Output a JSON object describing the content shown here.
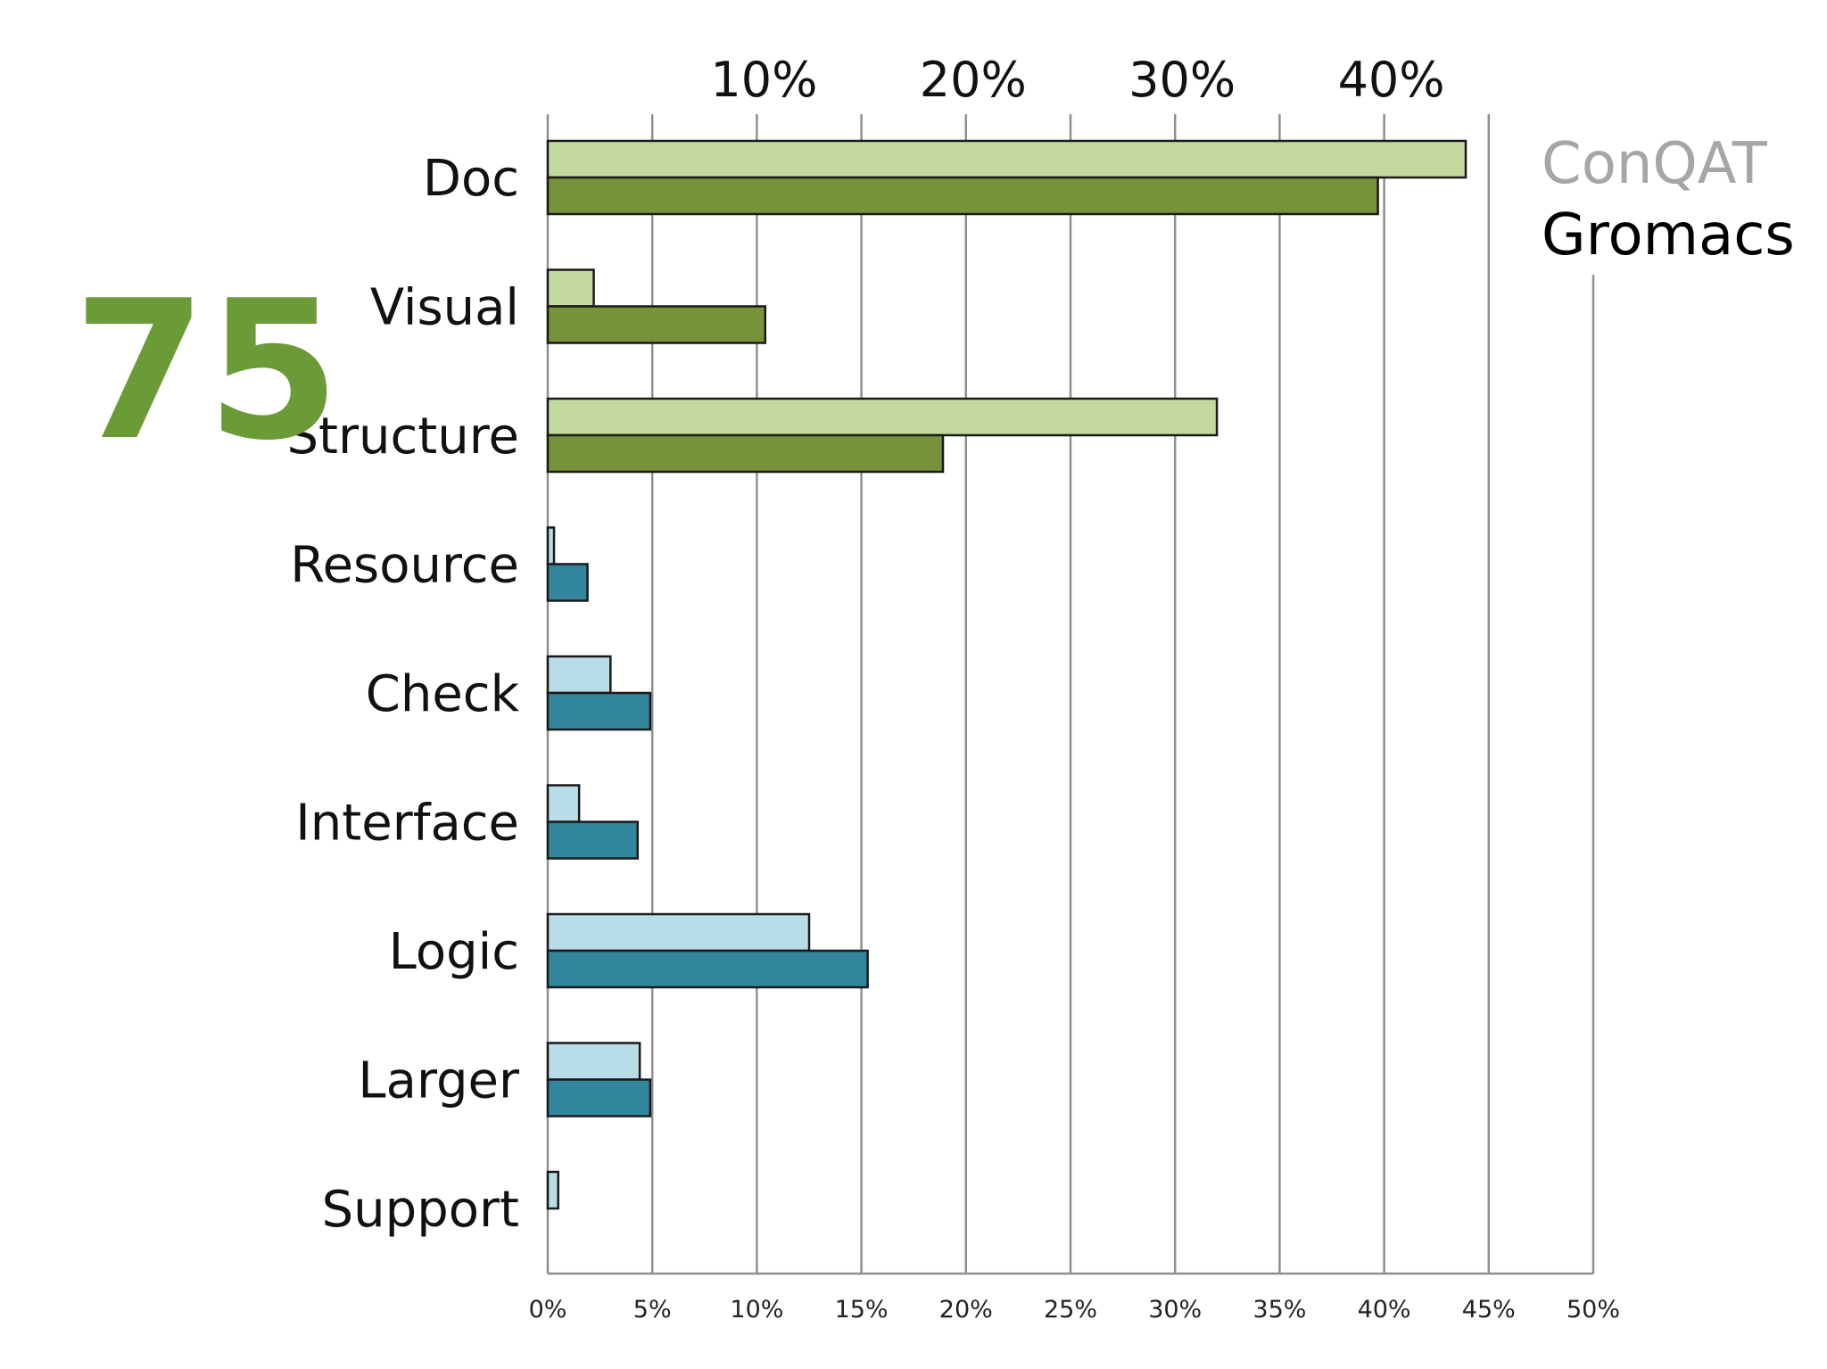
{
  "badge": {
    "value": "75",
    "color": "#6b9b37"
  },
  "chart_data": {
    "type": "bar",
    "orientation": "horizontal",
    "categories": [
      "Doc",
      "Visual",
      "Structure",
      "Resource",
      "Check",
      "Interface",
      "Logic",
      "Larger",
      "Support"
    ],
    "series": [
      {
        "name": "ConQAT",
        "values": [
          43.9,
          2.2,
          32.0,
          0.3,
          3.0,
          1.5,
          12.5,
          4.4,
          0.5
        ]
      },
      {
        "name": "Gromacs",
        "values": [
          39.7,
          10.4,
          18.9,
          1.9,
          4.9,
          4.3,
          15.3,
          4.9,
          0.0
        ]
      }
    ],
    "colors": {
      "green_light": "#c4d99e",
      "green_dark": "#76933c",
      "teal_light": "#b8dce8",
      "teal_dark": "#31859c",
      "conqat_legend": "#a6a6a6",
      "gromacs_legend": "#000000"
    },
    "green_group_size": 3,
    "xlim": [
      0,
      50
    ],
    "bottom_ticks": [
      "0%",
      "5%",
      "10%",
      "15%",
      "20%",
      "25%",
      "30%",
      "35%",
      "40%",
      "45%",
      "50%"
    ],
    "top_ticks": [
      "10%",
      "20%",
      "30%",
      "40%"
    ],
    "legend": [
      "ConQAT",
      "Gromacs"
    ],
    "legend_position": "top-right",
    "grid": true
  }
}
